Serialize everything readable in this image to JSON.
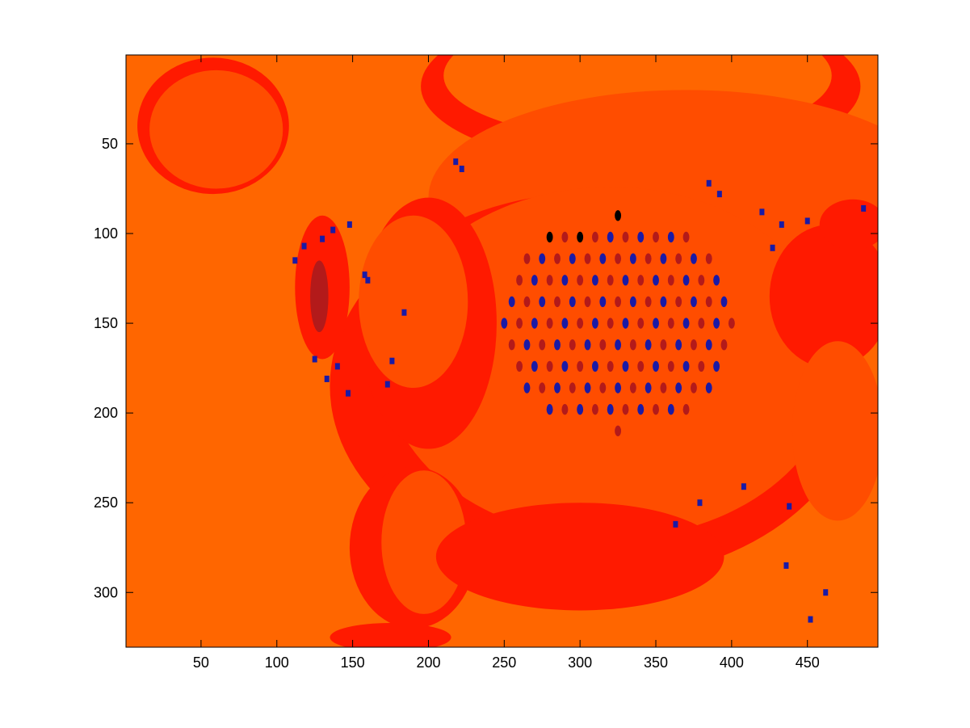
{
  "chart_data": {
    "type": "heatmap",
    "title": "",
    "xlabel": "",
    "ylabel": "",
    "xlim": [
      0.5,
      496.5
    ],
    "ylim": [
      0.5,
      330.5
    ],
    "y_direction": "reverse",
    "grid": false,
    "colorbar": false,
    "x_ticks": [
      50,
      100,
      150,
      200,
      250,
      300,
      350,
      400,
      450
    ],
    "y_ticks": [
      50,
      100,
      150,
      200,
      250,
      300
    ],
    "x_tick_labels": [
      "50",
      "100",
      "150",
      "200",
      "250",
      "300",
      "350",
      "400",
      "450"
    ],
    "y_tick_labels": [
      "50",
      "100",
      "150",
      "200",
      "250",
      "300"
    ],
    "colors": {
      "background_orange": "#ff6600",
      "mid_orange": "#ff4d00",
      "red": "#ff1a00",
      "dark_red": "#b31a1a",
      "blue": "#1a1aa6"
    },
    "regions": [
      {
        "level": "red",
        "shape": "ellipse",
        "cx": 58,
        "cy": 40,
        "rx": 50,
        "ry": 38
      },
      {
        "level": "mid_orange",
        "shape": "ellipse",
        "cx": 60,
        "cy": 42,
        "rx": 44,
        "ry": 33
      },
      {
        "level": "red",
        "shape": "ellipse",
        "cx": 340,
        "cy": 18,
        "rx": 145,
        "ry": 45
      },
      {
        "level": "background_orange",
        "shape": "ellipse",
        "cx": 338,
        "cy": 12,
        "rx": 128,
        "ry": 36
      },
      {
        "level": "mid_orange",
        "shape": "ellipse",
        "cx": 370,
        "cy": 80,
        "rx": 170,
        "ry": 60
      },
      {
        "level": "red",
        "shape": "ellipse",
        "cx": 310,
        "cy": 185,
        "rx": 175,
        "ry": 108
      },
      {
        "level": "mid_orange",
        "shape": "ellipse",
        "cx": 320,
        "cy": 172,
        "rx": 150,
        "ry": 98
      },
      {
        "level": "red",
        "shape": "ellipse",
        "cx": 200,
        "cy": 150,
        "rx": 45,
        "ry": 70
      },
      {
        "level": "mid_orange",
        "shape": "ellipse",
        "cx": 190,
        "cy": 138,
        "rx": 36,
        "ry": 48
      },
      {
        "level": "red",
        "shape": "ellipse",
        "cx": 190,
        "cy": 275,
        "rx": 42,
        "ry": 45
      },
      {
        "level": "mid_orange",
        "shape": "ellipse",
        "cx": 197,
        "cy": 272,
        "rx": 28,
        "ry": 40
      },
      {
        "level": "red",
        "shape": "ellipse",
        "cx": 300,
        "cy": 280,
        "rx": 95,
        "ry": 30
      },
      {
        "level": "red",
        "shape": "ellipse",
        "cx": 465,
        "cy": 135,
        "rx": 40,
        "ry": 40
      },
      {
        "level": "mid_orange",
        "shape": "ellipse",
        "cx": 470,
        "cy": 210,
        "rx": 30,
        "ry": 50
      },
      {
        "level": "red",
        "shape": "ellipse",
        "cx": 480,
        "cy": 95,
        "rx": 22,
        "ry": 14
      },
      {
        "level": "red",
        "shape": "ellipse",
        "cx": 130,
        "cy": 130,
        "rx": 18,
        "ry": 40
      },
      {
        "level": "dark_red",
        "shape": "ellipse",
        "cx": 128,
        "cy": 135,
        "rx": 6,
        "ry": 20
      },
      {
        "level": "red",
        "shape": "ellipse",
        "cx": 175,
        "cy": 325,
        "rx": 40,
        "ry": 8
      }
    ],
    "spot_field": {
      "center": [
        325,
        150
      ],
      "radii": [
        75,
        60
      ],
      "column_spacing": 10,
      "row_spacing": 12,
      "spot_size": [
        3.5,
        5
      ],
      "colors": [
        "dark_red",
        "blue"
      ]
    },
    "scatter_marks": [
      [
        158,
        123
      ],
      [
        160,
        126
      ],
      [
        184,
        144
      ],
      [
        176,
        171
      ],
      [
        173,
        184
      ],
      [
        125,
        170
      ],
      [
        133,
        181
      ],
      [
        140,
        174
      ],
      [
        147,
        189
      ],
      [
        218,
        60
      ],
      [
        222,
        64
      ],
      [
        385,
        72
      ],
      [
        392,
        78
      ],
      [
        420,
        88
      ],
      [
        433,
        95
      ],
      [
        450,
        93
      ],
      [
        487,
        86
      ],
      [
        427,
        108
      ],
      [
        363,
        262
      ],
      [
        379,
        250
      ],
      [
        462,
        300
      ],
      [
        438,
        252
      ],
      [
        408,
        241
      ],
      [
        436,
        285
      ],
      [
        452,
        315
      ],
      [
        130,
        103
      ],
      [
        137,
        98
      ],
      [
        148,
        95
      ],
      [
        118,
        107
      ],
      [
        112,
        115
      ]
    ]
  }
}
